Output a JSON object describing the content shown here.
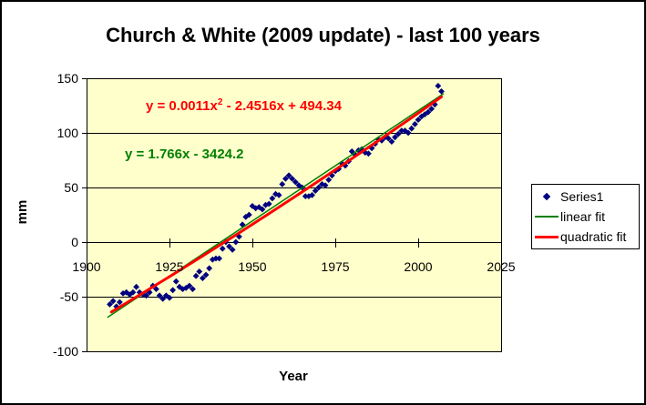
{
  "title": "Church & White (2009 update) - last 100 years",
  "annotations": {
    "quadratic_eq_pre": "y = 0.0011x",
    "quadratic_eq_sup": "2",
    "quadratic_eq_post": " - 2.4516x + 494.34",
    "quadratic_eq_color": "#FF0000",
    "linear_eq_text": "y = 1.766x - 3424.2",
    "linear_eq_color": "#008000"
  },
  "legend": {
    "items": [
      {
        "label": "Series1",
        "swatch": "diamond-icon",
        "color": "#000080"
      },
      {
        "label": "linear fit",
        "swatch": "thin-line",
        "color": "#008000"
      },
      {
        "label": "quadratic fit",
        "swatch": "thick-line",
        "color": "#FF0000"
      }
    ]
  },
  "chart_data": {
    "type": "scatter",
    "title": "Church & White (2009 update) - last 100 years",
    "xlabel": "Year",
    "ylabel": "mm",
    "xlim": [
      1900,
      2025
    ],
    "ylim": [
      -100,
      150
    ],
    "x_ticks": [
      1900,
      1925,
      1950,
      1975,
      2000,
      2025
    ],
    "y_ticks": [
      -100,
      -50,
      0,
      50,
      100,
      150
    ],
    "gridlines": "horizontal-major",
    "plot_bg": "#FFFFCC",
    "legend_position": "right",
    "series": [
      {
        "name": "Series1",
        "marker": "diamond",
        "color": "#000080",
        "x_start": 1907,
        "x_step": 1,
        "values": [
          -57,
          -54,
          -59,
          -55,
          -47,
          -46,
          -48,
          -46,
          -41,
          -46,
          -48,
          -49,
          -46,
          -40,
          -43,
          -49,
          -52,
          -49,
          -51,
          -44,
          -36,
          -41,
          -43,
          -42,
          -40,
          -43,
          -31,
          -27,
          -33,
          -30,
          -24,
          -16,
          -15,
          -15,
          -6,
          0,
          -4,
          -7,
          0,
          5,
          16,
          23,
          25,
          33,
          31,
          32,
          30,
          34,
          35,
          40,
          44,
          43,
          53,
          58,
          61,
          58,
          55,
          52,
          50,
          42,
          42,
          43,
          47,
          50,
          53,
          52,
          57,
          61,
          65,
          67,
          72,
          70,
          74,
          83,
          80,
          84,
          85,
          82,
          81,
          86,
          90,
          94,
          93,
          96,
          95,
          92,
          96,
          99,
          102,
          102,
          100,
          104,
          108,
          112,
          115,
          117,
          119,
          122,
          126,
          143,
          138
        ]
      }
    ],
    "trendlines": [
      {
        "name": "linear fit",
        "equation": "y = 1.766x - 3424.2",
        "color": "#008000",
        "width": 1.5,
        "curve": "line",
        "points": [
          [
            1906.3,
            -69
          ],
          [
            2007.7,
            136
          ]
        ]
      },
      {
        "name": "quadratic fit",
        "equation": "y = 0.0011x^2 - 2.4516x + 494.34",
        "color": "#FF0000",
        "width": 3,
        "curve": "quadratic-bezier",
        "points": [
          [
            1907.5,
            -64
          ],
          [
            1957.25,
            26.5
          ],
          [
            2007.0,
            133
          ]
        ]
      }
    ]
  }
}
